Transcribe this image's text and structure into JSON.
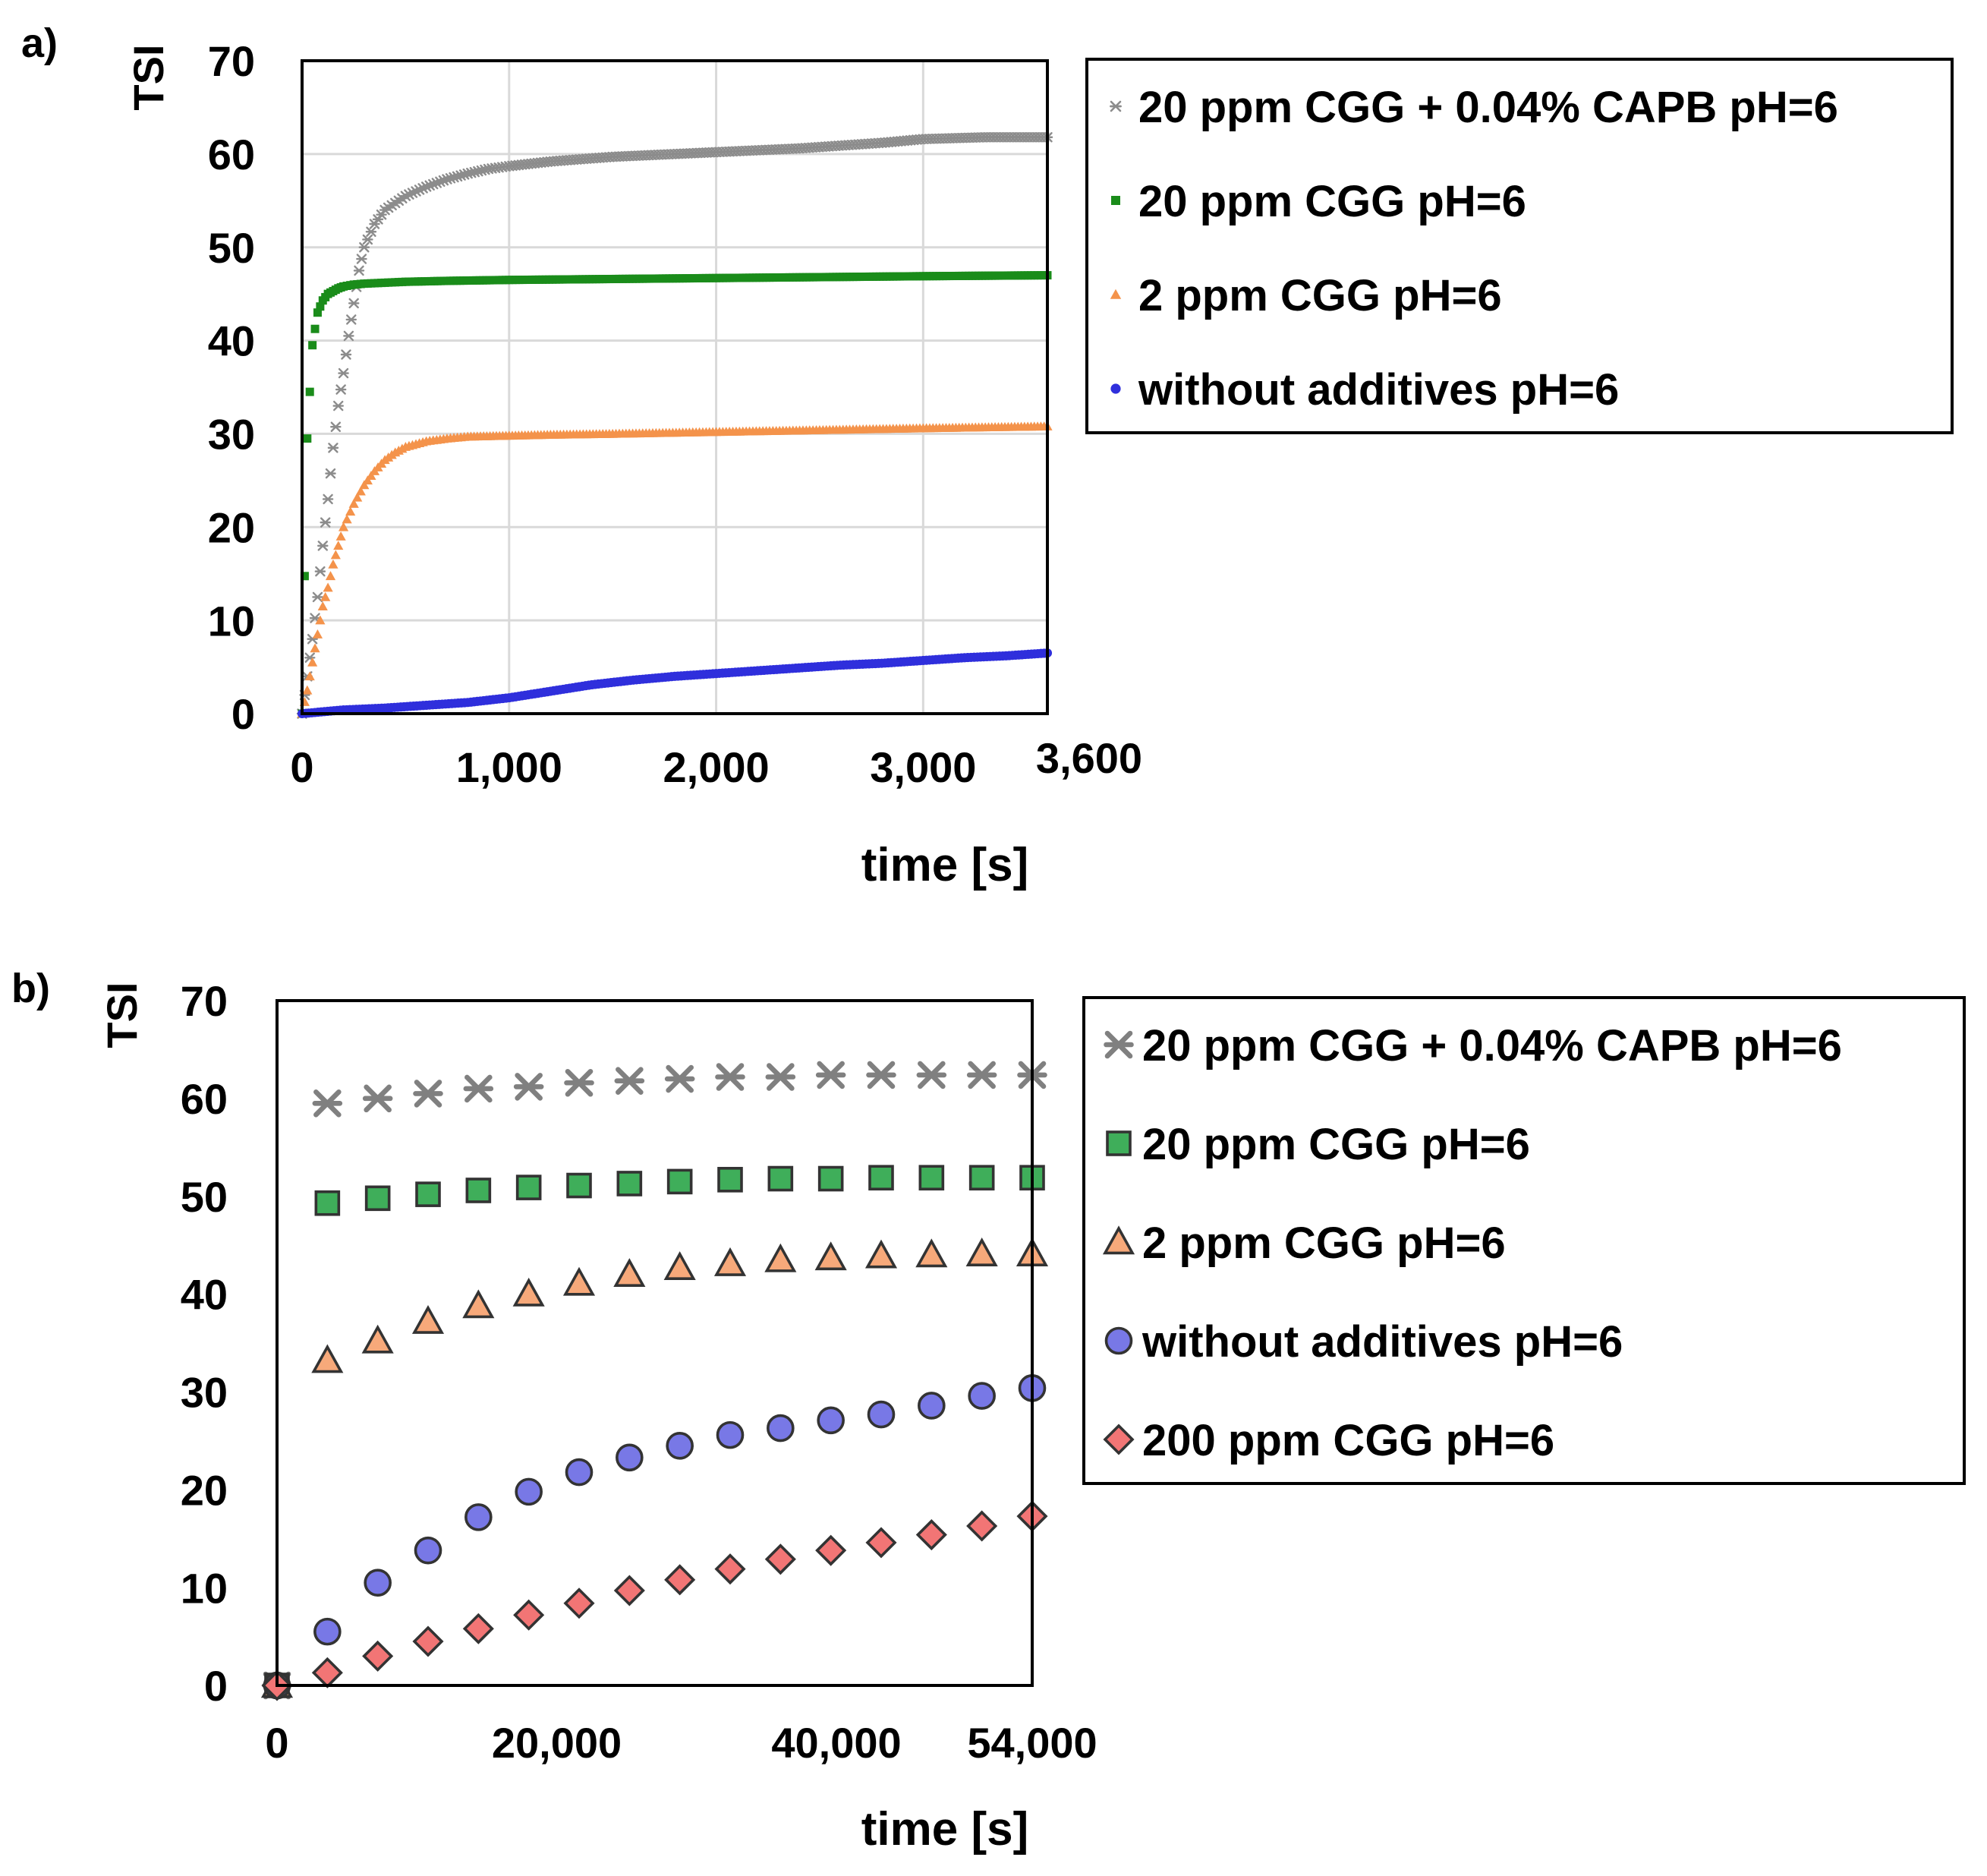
{
  "chart_data": [
    {
      "panel_label": "a)",
      "type": "scatter",
      "ylabel": "TSI",
      "xlabel": "time [s]",
      "xlim": [
        0,
        3600
      ],
      "ylim": [
        0,
        70
      ],
      "xticks": [
        0,
        1000,
        2000,
        3000,
        3600
      ],
      "xtick_labels": [
        "0",
        "1,000",
        "2,000",
        "3,000",
        "3,600"
      ],
      "yticks": [
        0,
        10,
        20,
        30,
        40,
        50,
        60,
        70
      ],
      "ytick_labels": [
        "0",
        "10",
        "20",
        "30",
        "40",
        "50",
        "60",
        "70"
      ],
      "grid": true,
      "legend_position": "right",
      "series": [
        {
          "name": "20 ppm CGG + 0.04% CAPB pH=6",
          "color": "#8c8c8c",
          "marker": "asterisk",
          "x": [
            0,
            25,
            50,
            75,
            100,
            125,
            150,
            175,
            200,
            225,
            250,
            275,
            300,
            350,
            400,
            500,
            600,
            700,
            800,
            900,
            1000,
            1200,
            1500,
            1800,
            2000,
            2400,
            2800,
            3000,
            3300,
            3600
          ],
          "y": [
            0,
            4,
            8,
            12.5,
            18,
            23,
            28.5,
            33,
            36.5,
            40.5,
            44,
            47.5,
            50,
            52.5,
            54,
            55.5,
            56.5,
            57.3,
            57.9,
            58.4,
            58.7,
            59.2,
            59.7,
            60,
            60.2,
            60.6,
            61.2,
            61.6,
            61.8,
            61.8
          ]
        },
        {
          "name": "20 ppm CGG pH=6",
          "color": "#1a8c1a",
          "marker": "square",
          "x": [
            0,
            25,
            50,
            75,
            100,
            125,
            150,
            175,
            200,
            250,
            300,
            400,
            500,
            700,
            1000,
            1500,
            2000,
            2500,
            3000,
            3600
          ],
          "y": [
            0,
            29.5,
            39.5,
            43,
            44.3,
            45,
            45.3,
            45.6,
            45.8,
            46,
            46.1,
            46.2,
            46.3,
            46.4,
            46.5,
            46.6,
            46.7,
            46.8,
            46.9,
            47
          ]
        },
        {
          "name": "2 ppm CGG pH=6",
          "color": "#f4934b",
          "marker": "triangle",
          "x": [
            0,
            25,
            50,
            75,
            100,
            125,
            150,
            175,
            200,
            250,
            300,
            350,
            400,
            450,
            500,
            600,
            700,
            800,
            1000,
            1200,
            1500,
            2000,
            2500,
            3000,
            3600
          ],
          "y": [
            0,
            2.5,
            5.5,
            8.5,
            11.5,
            13.5,
            16,
            18,
            20,
            22.5,
            24.5,
            26,
            27.2,
            28,
            28.6,
            29.2,
            29.5,
            29.7,
            29.8,
            29.9,
            30,
            30.2,
            30.4,
            30.6,
            30.8
          ]
        },
        {
          "name": "without additives pH=6",
          "color": "#2f2fdc",
          "marker": "circle",
          "x": [
            0,
            200,
            400,
            600,
            800,
            1000,
            1200,
            1400,
            1600,
            1800,
            2000,
            2200,
            2400,
            2600,
            2800,
            3000,
            3200,
            3400,
            3600
          ],
          "y": [
            0,
            0.4,
            0.6,
            0.9,
            1.2,
            1.7,
            2.4,
            3.1,
            3.6,
            4,
            4.3,
            4.6,
            4.9,
            5.2,
            5.4,
            5.7,
            6,
            6.2,
            6.5
          ]
        }
      ]
    },
    {
      "panel_label": "b)",
      "type": "scatter",
      "ylabel": "TSI",
      "xlabel": "time [s]",
      "xlim": [
        0,
        54000
      ],
      "ylim": [
        0,
        70
      ],
      "xticks": [
        0,
        20000,
        40000,
        54000
      ],
      "xtick_labels": [
        "0",
        "20,000",
        "40,000",
        "54,000"
      ],
      "yticks": [
        0,
        10,
        20,
        30,
        40,
        50,
        60,
        70
      ],
      "ytick_labels": [
        "0",
        "10",
        "20",
        "30",
        "40",
        "50",
        "60",
        "70"
      ],
      "grid": false,
      "legend_position": "right",
      "series": [
        {
          "name": "20 ppm CGG + 0.04% CAPB pH=6",
          "color": "#808080",
          "marker": "asterisk",
          "x": [
            0,
            3600,
            7200,
            10800,
            14400,
            18000,
            21600,
            25200,
            28800,
            32400,
            36000,
            39600,
            43200,
            46800,
            50400,
            54000
          ],
          "y": [
            0,
            59.5,
            60,
            60.5,
            61,
            61.2,
            61.6,
            61.8,
            62,
            62.2,
            62.2,
            62.4,
            62.4,
            62.4,
            62.4,
            62.4
          ]
        },
        {
          "name": "20 ppm CGG pH=6",
          "color": "#3fae5a",
          "marker": "square",
          "x": [
            0,
            3600,
            7200,
            10800,
            14400,
            18000,
            21600,
            25200,
            28800,
            32400,
            36000,
            39600,
            43200,
            46800,
            50400,
            54000
          ],
          "y": [
            0,
            49.3,
            49.8,
            50.2,
            50.6,
            50.9,
            51.1,
            51.3,
            51.5,
            51.7,
            51.8,
            51.8,
            51.9,
            51.9,
            51.9,
            51.9
          ]
        },
        {
          "name": "2 ppm CGG pH=6",
          "color": "#f7a97a",
          "marker": "triangle",
          "x": [
            0,
            3600,
            7200,
            10800,
            14400,
            18000,
            21600,
            25200,
            28800,
            32400,
            36000,
            39600,
            43200,
            46800,
            50400,
            54000
          ],
          "y": [
            0,
            33.2,
            35.2,
            37.2,
            38.8,
            40,
            41.1,
            42,
            42.7,
            43.1,
            43.5,
            43.7,
            43.9,
            44,
            44.1,
            44.1
          ]
        },
        {
          "name": "without additives pH=6",
          "color": "#7878e6",
          "marker": "circle",
          "x": [
            0,
            3600,
            7200,
            10800,
            14400,
            18000,
            21600,
            25200,
            28800,
            32400,
            36000,
            39600,
            43200,
            46800,
            50400,
            54000
          ],
          "y": [
            0,
            5.5,
            10.5,
            13.8,
            17.2,
            19.8,
            21.8,
            23.3,
            24.5,
            25.6,
            26.3,
            27.1,
            27.7,
            28.6,
            29.6,
            30.4
          ]
        },
        {
          "name": "200 ppm CGG pH=6",
          "color": "#f27575",
          "marker": "diamond",
          "x": [
            0,
            3600,
            7200,
            10800,
            14400,
            18000,
            21600,
            25200,
            28800,
            32400,
            36000,
            39600,
            43200,
            46800,
            50400,
            54000
          ],
          "y": [
            0,
            1.3,
            3,
            4.5,
            5.8,
            7.2,
            8.4,
            9.7,
            10.8,
            11.9,
            12.9,
            13.8,
            14.6,
            15.4,
            16.3,
            17.3
          ]
        }
      ]
    }
  ]
}
